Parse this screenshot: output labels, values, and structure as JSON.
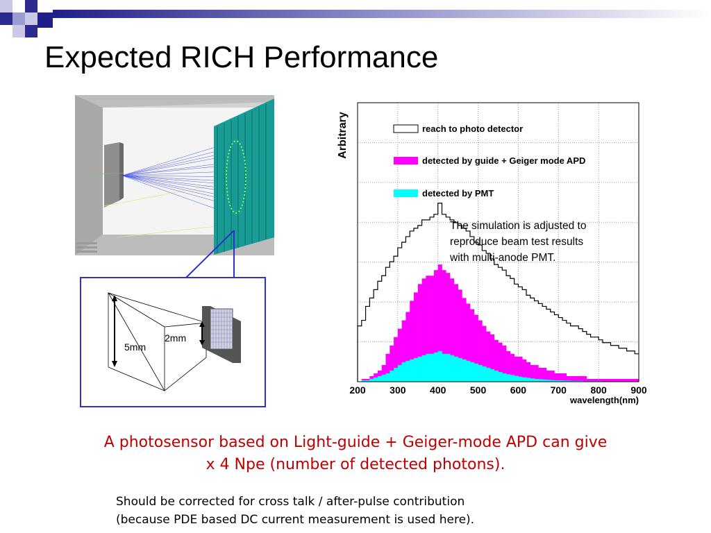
{
  "slide": {
    "title": "Expected RICH Performance",
    "caption": [
      "A photosensor based on Light-guide + Geiger-mode APD can give",
      "x 4 Npe (number of detected photons)."
    ],
    "note": [
      "Should be corrected for cross talk / after-pulse contribution",
      "(because PDE based  DC current measurement is used here)."
    ]
  },
  "zoom_diagram": {
    "label_5mm": "5mm",
    "label_2mm": "2mm"
  },
  "colors": {
    "blue_bar": "#2a2a8f",
    "caption_red": "#c00000",
    "apd_magenta": "#ff00ff",
    "pmt_cyan": "#00ffff",
    "zoom_frame": "#2f2fd0"
  },
  "chart_data": {
    "type": "histogram",
    "ylabel": "Arbitrary",
    "xlabel": "wavelength(nm)",
    "xlim": [
      200,
      900
    ],
    "ylim": [
      0,
      1
    ],
    "x_ticks": [
      "200",
      "300",
      "400",
      "500",
      "600",
      "700",
      "800",
      "900"
    ],
    "grid": true,
    "legend": [
      {
        "label": "reach to photo detector",
        "style": "outline"
      },
      {
        "label": "detected by guide + Geiger mode APD",
        "style": "magenta"
      },
      {
        "label": "detected by PMT",
        "style": "cyan"
      }
    ],
    "annotation": [
      "The simulation is adjusted to",
      "reproduce beam test results",
      "with multi-anode PMT."
    ],
    "bin_edges": [
      200,
      210,
      220,
      230,
      240,
      250,
      260,
      270,
      280,
      290,
      300,
      310,
      320,
      330,
      340,
      350,
      360,
      370,
      380,
      390,
      400,
      410,
      420,
      430,
      440,
      450,
      460,
      470,
      480,
      490,
      500,
      510,
      520,
      530,
      540,
      550,
      560,
      570,
      580,
      590,
      600,
      610,
      620,
      630,
      640,
      650,
      660,
      670,
      680,
      690,
      700,
      710,
      720,
      730,
      740,
      750,
      760,
      770,
      780,
      790,
      800,
      810,
      820,
      830,
      840,
      850,
      860,
      870,
      880,
      890,
      900
    ],
    "series": [
      {
        "name": "reach to photo detector",
        "values": [
          0.2,
          0.22,
          0.27,
          0.3,
          0.33,
          0.36,
          0.38,
          0.41,
          0.43,
          0.45,
          0.48,
          0.5,
          0.52,
          0.54,
          0.55,
          0.56,
          0.58,
          0.58,
          0.59,
          0.6,
          0.64,
          0.6,
          0.59,
          0.58,
          0.57,
          0.56,
          0.55,
          0.54,
          0.52,
          0.5,
          0.49,
          0.47,
          0.46,
          0.44,
          0.42,
          0.41,
          0.4,
          0.38,
          0.37,
          0.35,
          0.34,
          0.33,
          0.31,
          0.3,
          0.29,
          0.28,
          0.27,
          0.26,
          0.25,
          0.24,
          0.23,
          0.22,
          0.21,
          0.2,
          0.2,
          0.19,
          0.18,
          0.17,
          0.16,
          0.16,
          0.15,
          0.14,
          0.14,
          0.13,
          0.13,
          0.12,
          0.12,
          0.11,
          0.11,
          0.1
        ]
      },
      {
        "name": "detected by guide + Geiger mode APD",
        "values": [
          0,
          0.01,
          0.01,
          0.02,
          0.03,
          0.04,
          0.06,
          0.1,
          0.13,
          0.16,
          0.19,
          0.22,
          0.25,
          0.29,
          0.32,
          0.35,
          0.37,
          0.38,
          0.38,
          0.4,
          0.42,
          0.4,
          0.39,
          0.37,
          0.35,
          0.33,
          0.3,
          0.28,
          0.26,
          0.24,
          0.22,
          0.2,
          0.18,
          0.17,
          0.15,
          0.14,
          0.13,
          0.11,
          0.1,
          0.09,
          0.09,
          0.08,
          0.07,
          0.06,
          0.06,
          0.05,
          0.05,
          0.04,
          0.04,
          0.03,
          0.03,
          0.03,
          0.02,
          0.02,
          0.02,
          0.02,
          0.02,
          0.01,
          0.01,
          0.01,
          0.01,
          0.01,
          0.01,
          0.01,
          0.01,
          0.01,
          0.01,
          0.01,
          0.01,
          0.01
        ]
      },
      {
        "name": "detected by PMT",
        "values": [
          0,
          0.005,
          0.005,
          0.01,
          0.015,
          0.02,
          0.025,
          0.03,
          0.04,
          0.05,
          0.06,
          0.07,
          0.075,
          0.08,
          0.085,
          0.09,
          0.095,
          0.1,
          0.1,
          0.105,
          0.11,
          0.1,
          0.1,
          0.095,
          0.09,
          0.085,
          0.08,
          0.075,
          0.07,
          0.065,
          0.06,
          0.055,
          0.05,
          0.045,
          0.04,
          0.035,
          0.03,
          0.027,
          0.024,
          0.021,
          0.018,
          0.016,
          0.014,
          0.012,
          0.01,
          0.009,
          0.008,
          0.007,
          0.006,
          0.005,
          0.005,
          0.004,
          0.004,
          0.003,
          0.003,
          0.003,
          0.002,
          0.002,
          0.002,
          0.002,
          0.002,
          0.001,
          0.001,
          0.001,
          0.001,
          0.001,
          0.001,
          0.001,
          0.001,
          0.001
        ]
      }
    ]
  }
}
